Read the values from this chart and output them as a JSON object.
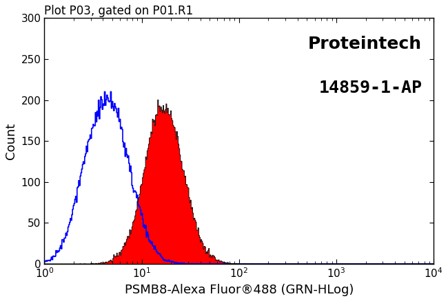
{
  "title": "Plot P03, gated on P01.R1",
  "xlabel": "PSMB8-Alexa Fluor®488 (GRN-HLog)",
  "ylabel": "Count",
  "brand_line1": "Proteintech",
  "brand_line2": "14859-1-AP",
  "xmin": 1,
  "xmax": 10000,
  "ymin": 0,
  "ymax": 300,
  "yticks": [
    0,
    50,
    100,
    150,
    200,
    250,
    300
  ],
  "blue_color": "#0000ff",
  "red_color": "#ff0000",
  "black_color": "#000000",
  "background_color": "#ffffff",
  "title_fontsize": 12,
  "label_fontsize": 13,
  "brand_fontsize": 18,
  "tick_fontsize": 11
}
